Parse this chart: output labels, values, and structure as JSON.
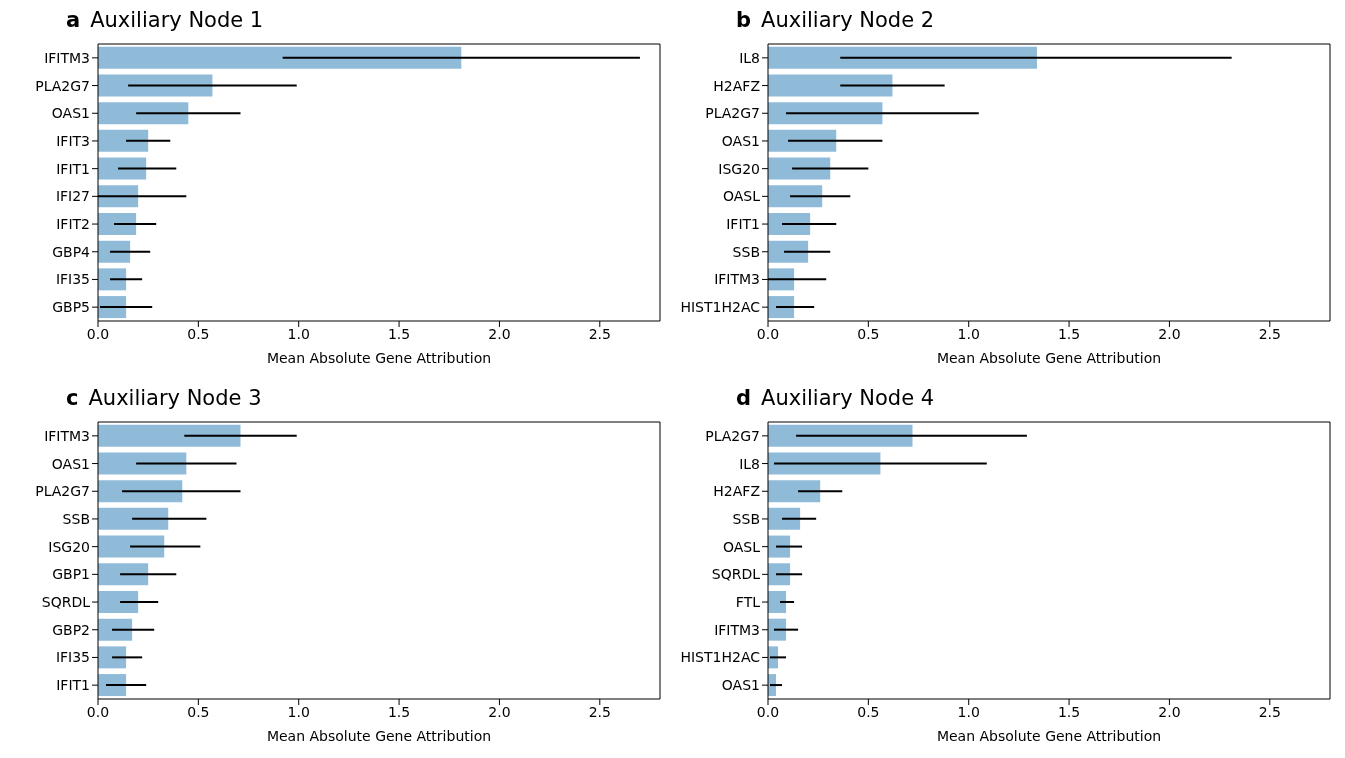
{
  "chart_data": [
    {
      "type": "bar",
      "orientation": "horizontal",
      "title": "Auxiliary Node 1",
      "annotations": [
        "a"
      ],
      "xlabel": "Mean Absolute Gene Attribution",
      "color": "#8fbbd9",
      "xlim": [
        0,
        2.8
      ],
      "xticks": [
        {
          "value": 0,
          "label": "0.0"
        },
        {
          "value": 0.5,
          "label": "0.5"
        },
        {
          "value": 1,
          "label": "1.0"
        },
        {
          "value": 1.5,
          "label": "1.5"
        },
        {
          "value": 2,
          "label": "2.0"
        },
        {
          "value": 2.5,
          "label": "2.5"
        }
      ],
      "categories": [
        "IFITM3",
        "PLA2G7",
        "OAS1",
        "IFIT3",
        "IFIT1",
        "IFI27",
        "IFIT2",
        "GBP4",
        "IFI35",
        "GBP5"
      ],
      "values": [
        1.81,
        0.57,
        0.45,
        0.25,
        0.24,
        0.2,
        0.19,
        0.16,
        0.14,
        0.14
      ],
      "errors": [
        [
          0.92,
          2.7
        ],
        [
          0.15,
          0.99
        ],
        [
          0.19,
          0.71
        ],
        [
          0.14,
          0.36
        ],
        [
          0.1,
          0.39
        ],
        [
          0,
          0.44
        ],
        [
          0.08,
          0.29
        ],
        [
          0.06,
          0.26
        ],
        [
          0.06,
          0.22
        ],
        [
          0.01,
          0.27
        ]
      ]
    },
    {
      "type": "bar",
      "orientation": "horizontal",
      "title": "Auxiliary Node 2",
      "annotations": [
        "b"
      ],
      "xlabel": "Mean Absolute Gene Attribution",
      "color": "#8fbbd9",
      "xlim": [
        0,
        2.8
      ],
      "xticks": [
        {
          "value": 0,
          "label": "0.0"
        },
        {
          "value": 0.5,
          "label": "0.5"
        },
        {
          "value": 1,
          "label": "1.0"
        },
        {
          "value": 1.5,
          "label": "1.5"
        },
        {
          "value": 2,
          "label": "2.0"
        },
        {
          "value": 2.5,
          "label": "2.5"
        }
      ],
      "categories": [
        "IL8",
        "H2AFZ",
        "PLA2G7",
        "OAS1",
        "ISG20",
        "OASL",
        "IFIT1",
        "SSB",
        "IFITM3",
        "HIST1H2AC"
      ],
      "values": [
        1.34,
        0.62,
        0.57,
        0.34,
        0.31,
        0.27,
        0.21,
        0.2,
        0.13,
        0.13
      ],
      "errors": [
        [
          0.36,
          2.31
        ],
        [
          0.36,
          0.88
        ],
        [
          0.09,
          1.05
        ],
        [
          0.1,
          0.57
        ],
        [
          0.12,
          0.5
        ],
        [
          0.11,
          0.41
        ],
        [
          0.07,
          0.34
        ],
        [
          0.08,
          0.31
        ],
        [
          0,
          0.29
        ],
        [
          0.04,
          0.23
        ]
      ]
    },
    {
      "type": "bar",
      "orientation": "horizontal",
      "title": "Auxiliary Node 3",
      "annotations": [
        "c"
      ],
      "xlabel": "Mean Absolute Gene Attribution",
      "color": "#8fbbd9",
      "xlim": [
        0,
        2.8
      ],
      "xticks": [
        {
          "value": 0,
          "label": "0.0"
        },
        {
          "value": 0.5,
          "label": "0.5"
        },
        {
          "value": 1,
          "label": "1.0"
        },
        {
          "value": 1.5,
          "label": "1.5"
        },
        {
          "value": 2,
          "label": "2.0"
        },
        {
          "value": 2.5,
          "label": "2.5"
        }
      ],
      "categories": [
        "IFITM3",
        "OAS1",
        "PLA2G7",
        "SSB",
        "ISG20",
        "GBP1",
        "SQRDL",
        "GBP2",
        "IFI35",
        "IFIT1"
      ],
      "values": [
        0.71,
        0.44,
        0.42,
        0.35,
        0.33,
        0.25,
        0.2,
        0.17,
        0.14,
        0.14
      ],
      "errors": [
        [
          0.43,
          0.99
        ],
        [
          0.19,
          0.69
        ],
        [
          0.12,
          0.71
        ],
        [
          0.17,
          0.54
        ],
        [
          0.16,
          0.51
        ],
        [
          0.11,
          0.39
        ],
        [
          0.11,
          0.3
        ],
        [
          0.07,
          0.28
        ],
        [
          0.07,
          0.22
        ],
        [
          0.04,
          0.24
        ]
      ]
    },
    {
      "type": "bar",
      "orientation": "horizontal",
      "title": "Auxiliary Node 4",
      "annotations": [
        "d"
      ],
      "xlabel": "Mean Absolute Gene Attribution",
      "color": "#8fbbd9",
      "xlim": [
        0,
        2.8
      ],
      "xticks": [
        {
          "value": 0,
          "label": "0.0"
        },
        {
          "value": 0.5,
          "label": "0.5"
        },
        {
          "value": 1,
          "label": "1.0"
        },
        {
          "value": 1.5,
          "label": "1.5"
        },
        {
          "value": 2,
          "label": "2.0"
        },
        {
          "value": 2.5,
          "label": "2.5"
        }
      ],
      "categories": [
        "PLA2G7",
        "IL8",
        "H2AFZ",
        "SSB",
        "OASL",
        "SQRDL",
        "FTL",
        "IFITM3",
        "HIST1H2AC",
        "OAS1"
      ],
      "values": [
        0.72,
        0.56,
        0.26,
        0.16,
        0.11,
        0.11,
        0.09,
        0.09,
        0.05,
        0.04
      ],
      "errors": [
        [
          0.14,
          1.29
        ],
        [
          0.03,
          1.09
        ],
        [
          0.15,
          0.37
        ],
        [
          0.07,
          0.24
        ],
        [
          0.04,
          0.17
        ],
        [
          0.04,
          0.17
        ],
        [
          0.06,
          0.13
        ],
        [
          0.03,
          0.15
        ],
        [
          0.01,
          0.09
        ],
        [
          0.01,
          0.07
        ]
      ]
    }
  ]
}
